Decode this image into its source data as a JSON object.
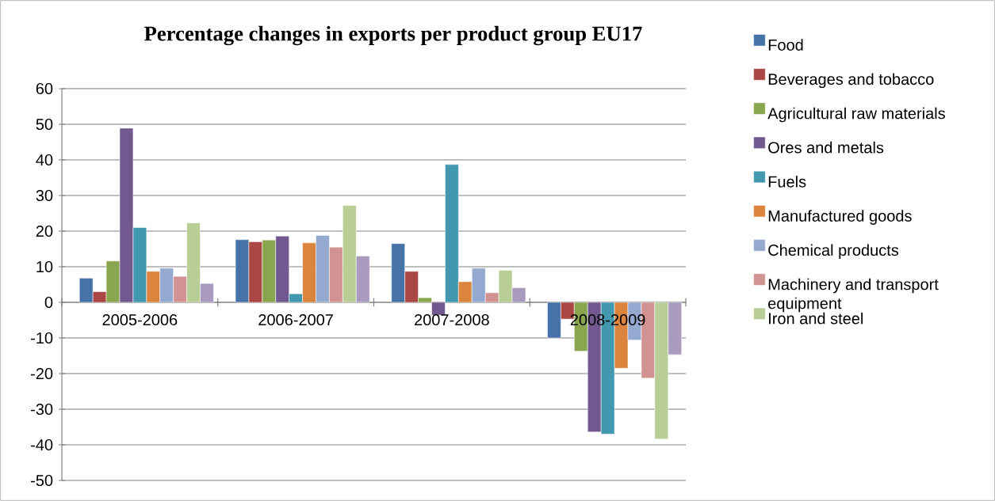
{
  "chart_data": {
    "type": "bar",
    "title": "Percentage changes in exports per product group EU17",
    "categories": [
      "2005-2006",
      "2006-2007",
      "2007-2008",
      "2008-2009"
    ],
    "series": [
      {
        "name": "Food",
        "color": "#4572a7",
        "values": [
          6.8,
          17.6,
          16.5,
          -10.0
        ]
      },
      {
        "name": "Beverages and tobacco",
        "color": "#aa4643",
        "values": [
          3.0,
          17.0,
          8.7,
          -4.7
        ]
      },
      {
        "name": "Agricultural raw materials",
        "color": "#89a54e",
        "values": [
          11.6,
          17.5,
          1.3,
          -13.7
        ]
      },
      {
        "name": "Ores and metals",
        "color": "#71588f",
        "values": [
          48.9,
          18.6,
          -3.6,
          -36.4
        ]
      },
      {
        "name": "Fuels",
        "color": "#4198af",
        "values": [
          21.0,
          2.4,
          38.7,
          -37.0
        ]
      },
      {
        "name": "Manufactured goods",
        "color": "#db843d",
        "values": [
          8.7,
          16.7,
          5.8,
          -18.5
        ]
      },
      {
        "name": "Chemical products",
        "color": "#93a9cf",
        "values": [
          9.6,
          18.8,
          9.6,
          -10.6
        ]
      },
      {
        "name": "Machinery and transport equipment",
        "color": "#d19392",
        "values": [
          7.3,
          15.5,
          2.7,
          -21.3
        ]
      },
      {
        "name": "Iron and steel",
        "color": "#b9cd96",
        "values": [
          22.3,
          27.2,
          9.0,
          -38.4
        ]
      },
      {
        "color": "#a99bbd",
        "values": [
          5.3,
          13.0,
          4.1,
          -14.7
        ]
      }
    ],
    "ylim": [
      -50,
      60
    ],
    "yticks": [
      -50,
      -40,
      -30,
      -20,
      -10,
      0,
      10,
      20,
      30,
      40,
      50,
      60
    ],
    "grid": "y",
    "legend": "right"
  }
}
